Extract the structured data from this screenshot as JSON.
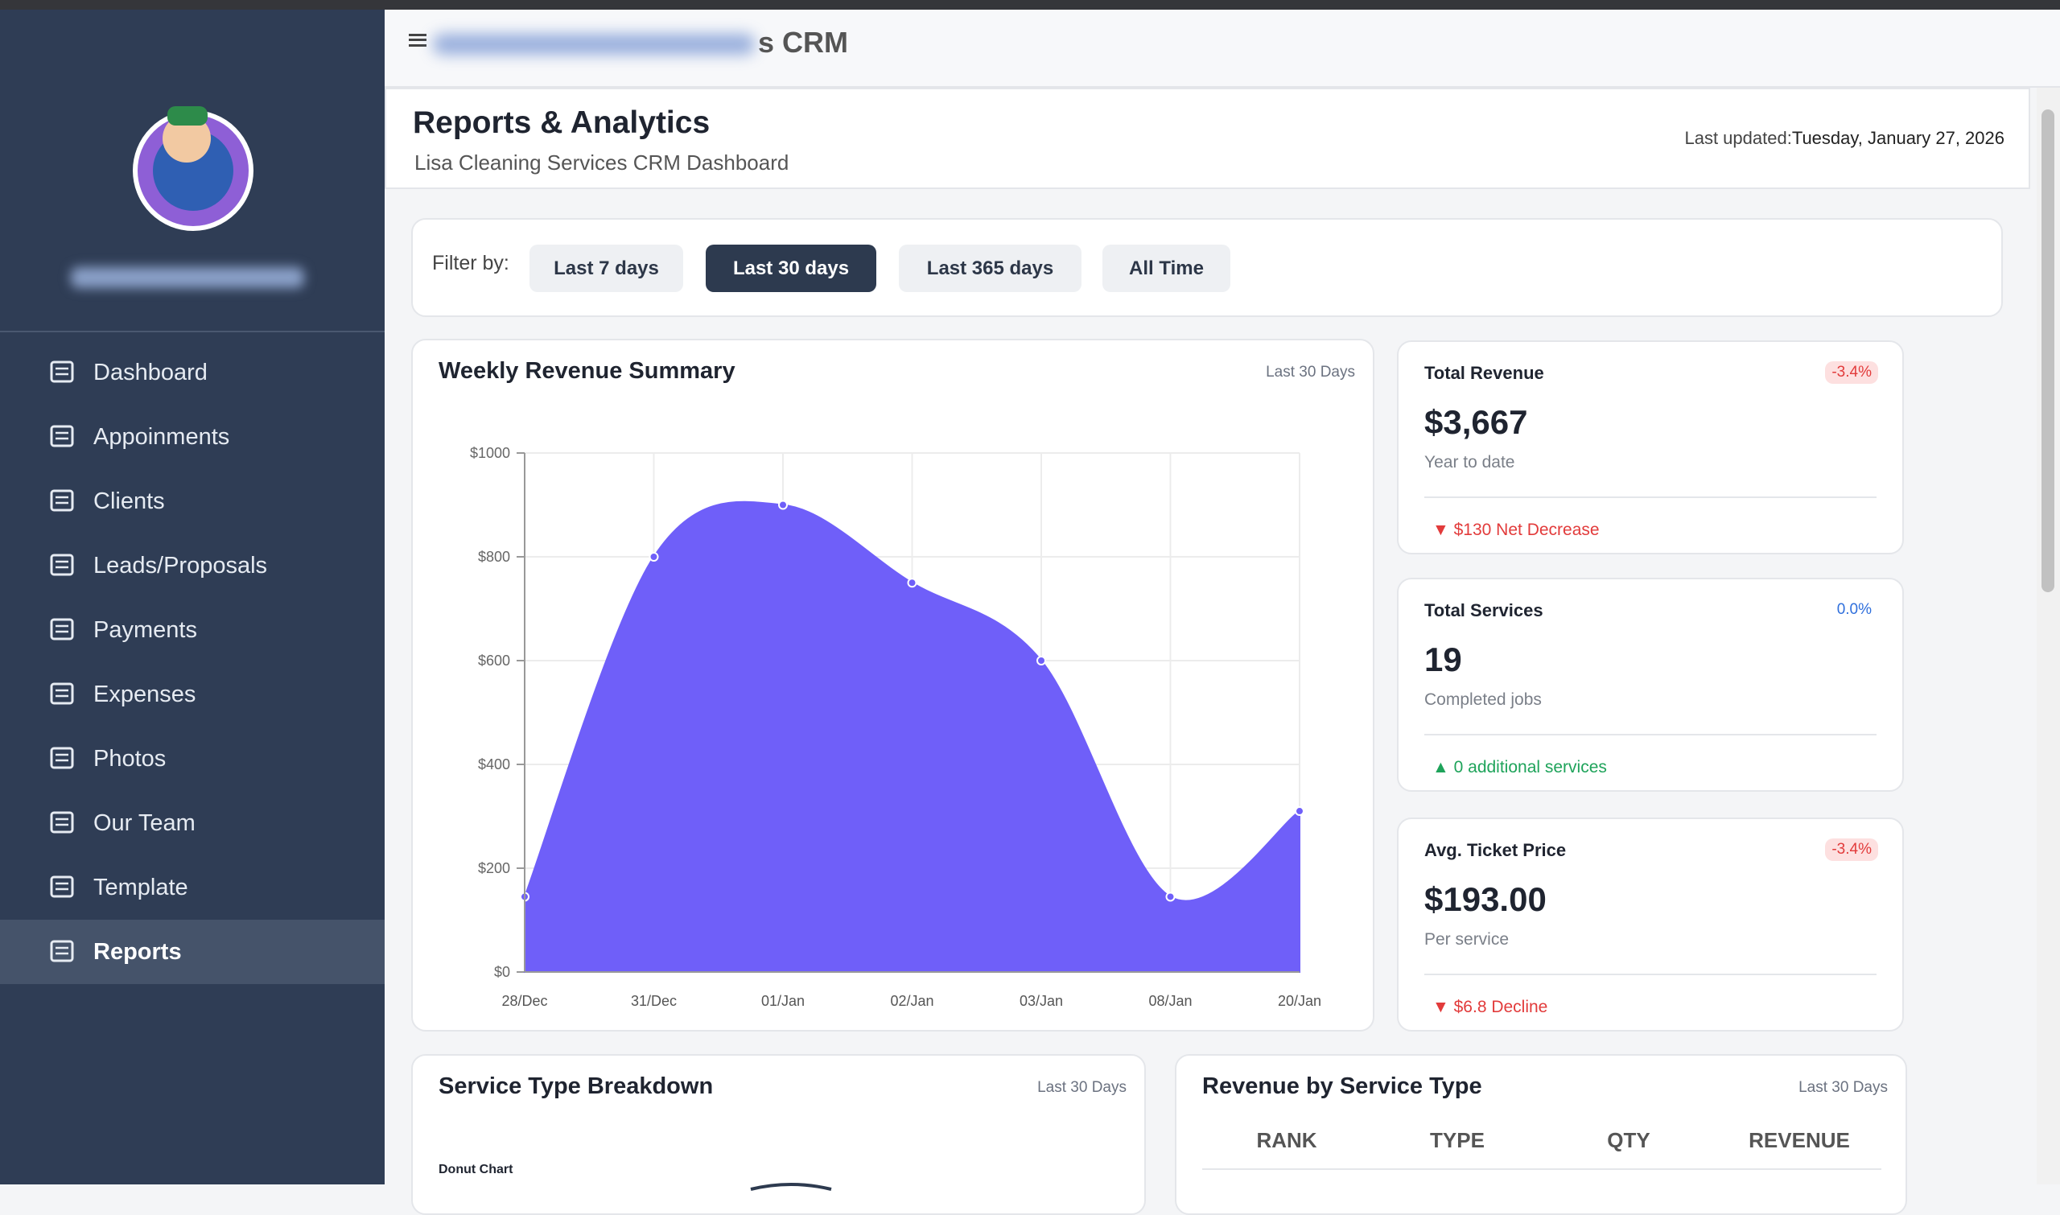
{
  "header": {
    "title_visible": "s CRM"
  },
  "sidebar": {
    "menu": [
      "Dashboard",
      "Appoinments",
      "Clients",
      "Leads/Proposals",
      "Payments",
      "Expenses",
      "Photos",
      "Our Team",
      "Template",
      "Reports"
    ]
  },
  "page": {
    "title": "Reports & Analytics",
    "subtitle": "Lisa Cleaning Services CRM Dashboard",
    "last_updated_label": "Last updated:",
    "last_updated_value": "Tuesday, January 27, 2026"
  },
  "filter": {
    "label": "Filter by:",
    "options": [
      "Last 7 days",
      "Last 30 days",
      "Last 365 days",
      "All Time"
    ]
  },
  "chart_data": {
    "type": "area",
    "title": "Weekly Revenue Summary",
    "subtitle": "Last 30 Days",
    "categories": [
      "28/Dec",
      "31/Dec",
      "01/Jan",
      "02/Jan",
      "03/Jan",
      "08/Jan",
      "20/Jan"
    ],
    "values": [
      145,
      800,
      900,
      750,
      600,
      145,
      310
    ],
    "color": "#6f5ff9",
    "ylim": [
      0,
      1000
    ],
    "yticks": [
      {
        "value": 0,
        "label": "$0"
      },
      {
        "value": 200,
        "label": "$200"
      },
      {
        "value": 400,
        "label": "$400"
      },
      {
        "value": 600,
        "label": "$600"
      },
      {
        "value": 800,
        "label": "$800"
      },
      {
        "value": 1000,
        "label": "$1000"
      }
    ],
    "grid": true
  },
  "kpis": [
    {
      "title": "Total Revenue",
      "badge": "-3.4%",
      "value": "$3,667",
      "caption": "Year to date",
      "footnote": "$130 Net Decrease"
    },
    {
      "title": "Total Services",
      "badge": "0.0%",
      "value": "19",
      "caption": "Completed jobs",
      "footnote": "0 additional services"
    },
    {
      "title": "Avg. Ticket Price",
      "badge": "-3.4%",
      "value": "$193.00",
      "caption": "Per service",
      "footnote": "$6.8 Decline"
    }
  ],
  "service_breakdown": {
    "title": "Service Type Breakdown",
    "subtitle": "Last 30 Days",
    "chart_label": "Donut Chart"
  },
  "revenue_table": {
    "title": "Revenue by Service Type",
    "subtitle": "Last 30 Days",
    "columns": [
      "RANK",
      "TYPE",
      "QTY",
      "REVENUE"
    ]
  }
}
